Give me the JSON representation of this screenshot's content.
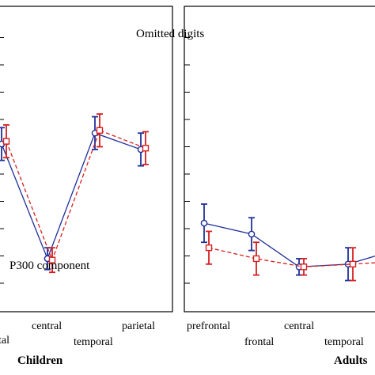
{
  "chart_data": [
    {
      "type": "line",
      "panel": "Children",
      "categories": [
        "prefrontal",
        "frontal",
        "central",
        "temporal",
        "parietal"
      ],
      "tick_label_fragments": [
        "tal",
        "central",
        "temporal",
        "parietal"
      ],
      "annotation": "P300 component",
      "series": [
        {
          "color": "#1f2f9a",
          "marker": "circle",
          "line": "solid",
          "values": [
            null,
            5.1,
            0.9,
            5.5,
            4.9
          ],
          "errors": [
            null,
            0.6,
            0.4,
            0.6,
            0.6
          ]
        },
        {
          "color": "#d42020",
          "marker": "square",
          "line": "dashed",
          "values": [
            null,
            5.2,
            0.85,
            5.6,
            4.95
          ],
          "errors": [
            null,
            0.6,
            0.45,
            0.6,
            0.6
          ]
        }
      ],
      "grid": false
    },
    {
      "type": "line",
      "panel": "Adults",
      "categories": [
        "prefrontal",
        "frontal",
        "central",
        "temporal",
        "parietal"
      ],
      "title": "Omitted digits",
      "series": [
        {
          "color": "#1f2f9a",
          "marker": "circle",
          "line": "solid",
          "values": [
            2.2,
            1.8,
            0.6,
            0.7,
            1.2
          ],
          "errors": [
            0.7,
            0.6,
            0.3,
            0.6,
            0.5
          ]
        },
        {
          "color": "#d42020",
          "marker": "square",
          "line": "dashed",
          "values": [
            1.3,
            0.9,
            0.6,
            0.7,
            0.8
          ],
          "errors": [
            0.6,
            0.6,
            0.3,
            0.6,
            0.5
          ]
        }
      ],
      "grid": false
    }
  ]
}
